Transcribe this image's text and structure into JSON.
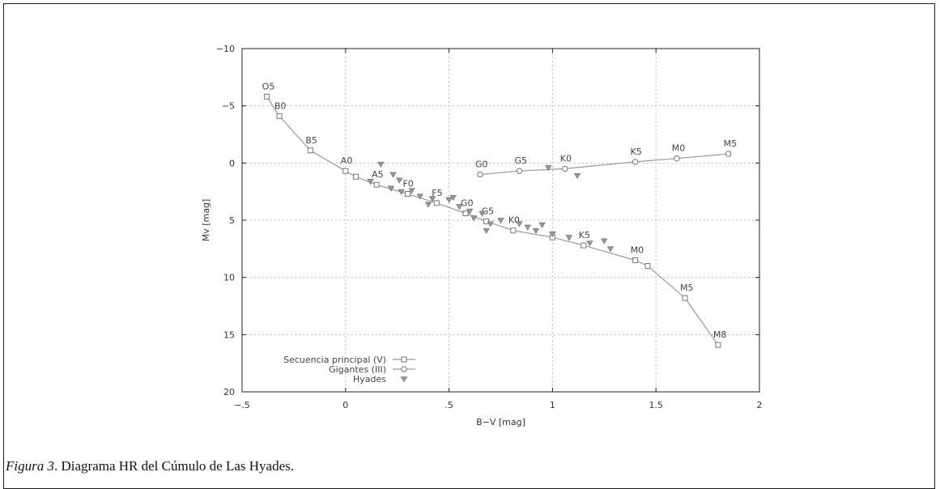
{
  "figure": {
    "label": "Figura 3",
    "text": ". Diagrama HR del Cúmulo de Las Hyades."
  },
  "chart_data": {
    "type": "scatter",
    "xlabel": "B−V [mag]",
    "ylabel": "Mv [mag]",
    "xlim": [
      -0.5,
      2
    ],
    "ylim": [
      -10,
      20
    ],
    "y_inverted": true,
    "x_ticks": [
      -0.5,
      0,
      0.5,
      1,
      1.5,
      2
    ],
    "x_tick_labels": [
      "−.5",
      "0",
      ".5",
      "1",
      "1.5",
      "2"
    ],
    "y_ticks": [
      -10,
      -5,
      0,
      5,
      10,
      15,
      20
    ],
    "y_tick_labels": [
      "−10",
      "−5",
      "0",
      "5",
      "10",
      "15",
      "20"
    ],
    "grid": true,
    "legend_position": "bottom-left",
    "series": [
      {
        "name": "Secuencia principal (V)",
        "marker": "square",
        "line": true,
        "points": [
          {
            "x": -0.38,
            "y": -5.8,
            "label": "O5"
          },
          {
            "x": -0.32,
            "y": -4.1,
            "label": "B0"
          },
          {
            "x": -0.17,
            "y": -1.1,
            "label": "B5"
          },
          {
            "x": 0.0,
            "y": 0.7,
            "label": "A0"
          },
          {
            "x": 0.05,
            "y": 1.2
          },
          {
            "x": 0.15,
            "y": 1.9,
            "label": "A5"
          },
          {
            "x": 0.3,
            "y": 2.7,
            "label": "F0"
          },
          {
            "x": 0.44,
            "y": 3.5,
            "label": "F5"
          },
          {
            "x": 0.58,
            "y": 4.4,
            "label": "G0"
          },
          {
            "x": 0.68,
            "y": 5.1,
            "label": "G5"
          },
          {
            "x": 0.81,
            "y": 5.9,
            "label": "K0"
          },
          {
            "x": 1.0,
            "y": 6.5
          },
          {
            "x": 1.15,
            "y": 7.2,
            "label": "K5"
          },
          {
            "x": 1.4,
            "y": 8.5,
            "label": "M0"
          },
          {
            "x": 1.46,
            "y": 9.0
          },
          {
            "x": 1.64,
            "y": 11.8,
            "label": "M5"
          },
          {
            "x": 1.8,
            "y": 15.9,
            "label": "M8"
          }
        ]
      },
      {
        "name": "Gigantes (III)",
        "marker": "circle",
        "line": true,
        "points": [
          {
            "x": 0.65,
            "y": 1.0,
            "label": "G0"
          },
          {
            "x": 0.84,
            "y": 0.7,
            "label": "G5"
          },
          {
            "x": 1.06,
            "y": 0.5,
            "label": "K0"
          },
          {
            "x": 1.4,
            "y": -0.1,
            "label": "K5"
          },
          {
            "x": 1.6,
            "y": -0.4,
            "label": "M0"
          },
          {
            "x": 1.85,
            "y": -0.8,
            "label": "M5"
          }
        ]
      },
      {
        "name": "Hyades",
        "marker": "triangle-down",
        "line": false,
        "points": [
          {
            "x": 0.17,
            "y": 0.1
          },
          {
            "x": 0.23,
            "y": 1.0
          },
          {
            "x": 0.26,
            "y": 1.5
          },
          {
            "x": 0.22,
            "y": 2.2
          },
          {
            "x": 0.27,
            "y": 2.5
          },
          {
            "x": 0.32,
            "y": 2.4
          },
          {
            "x": 0.36,
            "y": 2.9
          },
          {
            "x": 0.42,
            "y": 3.1
          },
          {
            "x": 0.4,
            "y": 3.6
          },
          {
            "x": 0.5,
            "y": 3.2
          },
          {
            "x": 0.52,
            "y": 3.0
          },
          {
            "x": 0.55,
            "y": 3.8
          },
          {
            "x": 0.6,
            "y": 4.2
          },
          {
            "x": 0.62,
            "y": 4.8
          },
          {
            "x": 0.66,
            "y": 4.4
          },
          {
            "x": 0.7,
            "y": 5.3
          },
          {
            "x": 0.75,
            "y": 5.0
          },
          {
            "x": 0.84,
            "y": 5.3
          },
          {
            "x": 0.88,
            "y": 5.6
          },
          {
            "x": 0.92,
            "y": 5.9
          },
          {
            "x": 0.95,
            "y": 5.4
          },
          {
            "x": 1.0,
            "y": 6.2
          },
          {
            "x": 1.08,
            "y": 6.5
          },
          {
            "x": 1.12,
            "y": 1.1
          },
          {
            "x": 1.18,
            "y": 7.0
          },
          {
            "x": 1.25,
            "y": 6.8
          },
          {
            "x": 1.28,
            "y": 7.5
          },
          {
            "x": 0.68,
            "y": 5.9
          },
          {
            "x": 0.98,
            "y": 0.4
          },
          {
            "x": 0.12,
            "y": 1.6
          }
        ]
      }
    ]
  }
}
